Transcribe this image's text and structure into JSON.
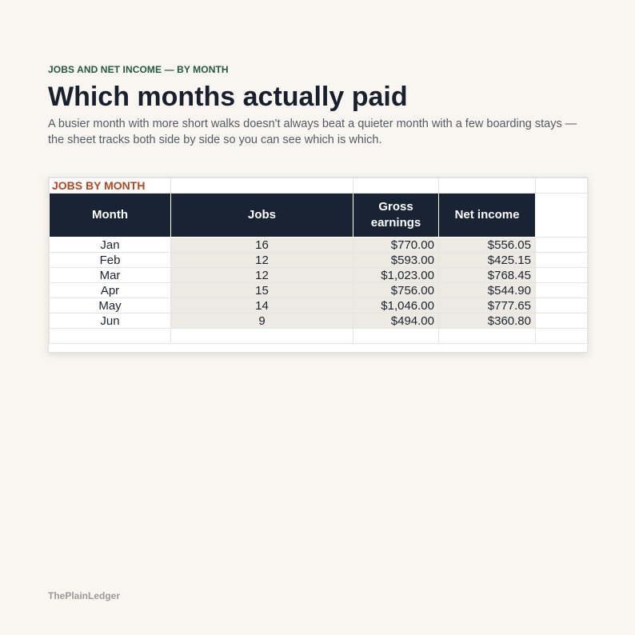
{
  "header": {
    "eyebrow": "JOBS AND NET INCOME — BY MONTH",
    "title": "Which months actually paid",
    "subtitle": "A busier month with more short walks doesn't always beat a quieter month with a few boarding stays — the sheet tracks both side by side so you can see which is which."
  },
  "sheet": {
    "caption": "JOBS BY MONTH",
    "columns": {
      "month": "Month",
      "jobs": "Jobs",
      "gross": "Gross earnings",
      "net": "Net income"
    },
    "rows": [
      {
        "month": "Jan",
        "jobs": "16",
        "gross": "$770.00",
        "net": "$556.05"
      },
      {
        "month": "Feb",
        "jobs": "12",
        "gross": "$593.00",
        "net": "$425.15"
      },
      {
        "month": "Mar",
        "jobs": "12",
        "gross": "$1,023.00",
        "net": "$768.45"
      },
      {
        "month": "Apr",
        "jobs": "15",
        "gross": "$756.00",
        "net": "$544.90"
      },
      {
        "month": "May",
        "jobs": "14",
        "gross": "$1,046.00",
        "net": "$777.65"
      },
      {
        "month": "Jun",
        "jobs": "9",
        "gross": "$494.00",
        "net": "$360.80"
      }
    ]
  },
  "footer": {
    "brand": "ThePlainLedger"
  }
}
